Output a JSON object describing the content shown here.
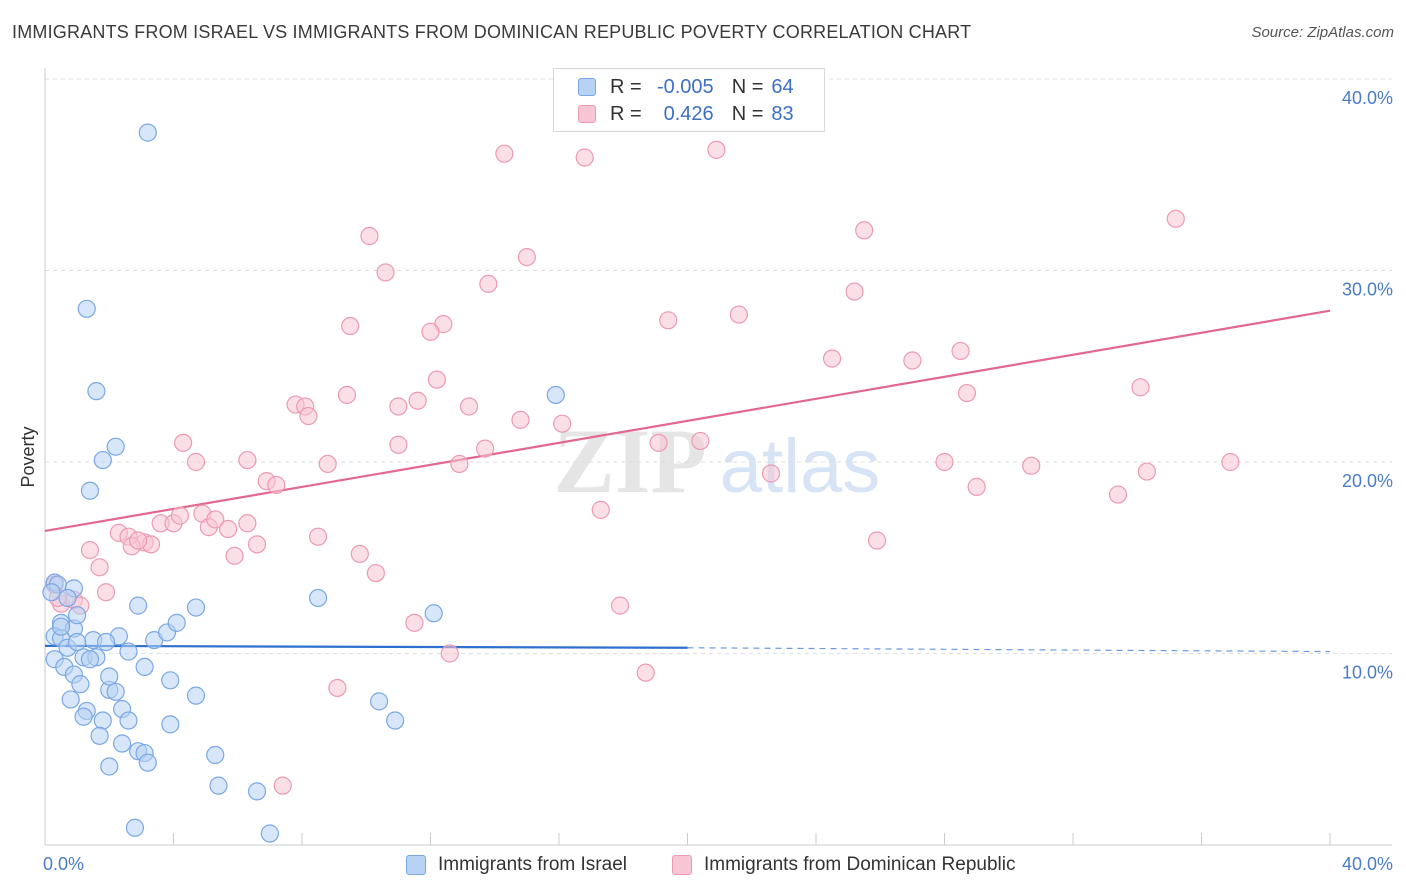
{
  "title": "IMMIGRANTS FROM ISRAEL VS IMMIGRANTS FROM DOMINICAN REPUBLIC POVERTY CORRELATION CHART",
  "source": "Source: ZipAtlas.com",
  "legend": {
    "r_label": "R =",
    "n_label": "N =",
    "rows": [
      {
        "r": "-0.005",
        "n": "64"
      },
      {
        "r": "0.426",
        "n": "83"
      }
    ]
  },
  "watermark": {
    "zip": "ZIP",
    "atlas": "atlas"
  },
  "colors": {
    "israel_fill": "#b7d2f3",
    "israel_stroke": "#7aa8e6",
    "israel_line": "#2f6fcf",
    "dr_fill": "#f7c5d3",
    "dr_stroke": "#ec9ab3",
    "dr_line": "#e2688f",
    "axis_text": "#4a7cc9",
    "grid": "#dddddd"
  },
  "chart_data": {
    "type": "scatter",
    "title": "IMMIGRANTS FROM ISRAEL VS IMMIGRANTS FROM DOMINICAN REPUBLIC POVERTY CORRELATION CHART",
    "xlabel": "",
    "ylabel": "Poverty",
    "xlim": [
      0,
      40
    ],
    "ylim": [
      0,
      40
    ],
    "x_tick_labels": [
      "0.0%",
      "40.0%"
    ],
    "y_ticks": [
      10,
      20,
      30,
      40
    ],
    "y_tick_labels": [
      "10.0%",
      "20.0%",
      "30.0%",
      "40.0%"
    ],
    "series": [
      {
        "name": "Immigrants from Israel",
        "r": -0.005,
        "n": 64,
        "trend": {
          "x": [
            0,
            20
          ],
          "y": [
            10.4,
            10.3
          ],
          "dashed_to": [
            40,
            10.1
          ]
        },
        "points": [
          [
            3.2,
            37.2
          ],
          [
            1.3,
            28.0
          ],
          [
            1.6,
            23.7
          ],
          [
            2.2,
            20.8
          ],
          [
            1.8,
            20.1
          ],
          [
            1.4,
            18.5
          ],
          [
            15.9,
            23.5
          ],
          [
            0.3,
            13.7
          ],
          [
            0.4,
            13.6
          ],
          [
            0.2,
            13.2
          ],
          [
            0.9,
            13.4
          ],
          [
            0.5,
            11.6
          ],
          [
            0.9,
            11.3
          ],
          [
            1.0,
            12.0
          ],
          [
            2.9,
            12.5
          ],
          [
            4.7,
            12.4
          ],
          [
            8.5,
            12.9
          ],
          [
            12.1,
            12.1
          ],
          [
            0.3,
            10.9
          ],
          [
            0.5,
            10.8
          ],
          [
            0.7,
            10.3
          ],
          [
            1.5,
            10.7
          ],
          [
            2.3,
            10.9
          ],
          [
            1.9,
            10.6
          ],
          [
            3.4,
            10.7
          ],
          [
            3.8,
            11.1
          ],
          [
            4.1,
            11.6
          ],
          [
            0.3,
            9.7
          ],
          [
            0.6,
            9.3
          ],
          [
            1.2,
            9.8
          ],
          [
            1.6,
            9.8
          ],
          [
            2.6,
            10.1
          ],
          [
            3.1,
            9.3
          ],
          [
            0.9,
            8.9
          ],
          [
            1.1,
            8.4
          ],
          [
            2.0,
            8.1
          ],
          [
            2.2,
            8.0
          ],
          [
            3.9,
            8.6
          ],
          [
            4.7,
            7.8
          ],
          [
            0.8,
            7.6
          ],
          [
            1.3,
            7.0
          ],
          [
            2.4,
            7.1
          ],
          [
            1.2,
            6.7
          ],
          [
            1.8,
            6.5
          ],
          [
            2.6,
            6.5
          ],
          [
            3.9,
            6.3
          ],
          [
            10.4,
            7.5
          ],
          [
            10.9,
            6.5
          ],
          [
            1.7,
            5.7
          ],
          [
            2.4,
            5.3
          ],
          [
            2.9,
            4.9
          ],
          [
            3.1,
            4.8
          ],
          [
            3.2,
            4.3
          ],
          [
            5.3,
            4.7
          ],
          [
            2.0,
            4.1
          ],
          [
            5.4,
            3.1
          ],
          [
            6.6,
            2.8
          ],
          [
            2.8,
            0.9
          ],
          [
            7.0,
            0.6
          ],
          [
            0.5,
            11.4
          ],
          [
            1.4,
            9.7
          ],
          [
            1.0,
            10.6
          ],
          [
            2.0,
            8.8
          ],
          [
            0.7,
            12.9
          ]
        ]
      },
      {
        "name": "Immigrants from Dominican Republic",
        "r": 0.426,
        "n": 83,
        "trend": {
          "x": [
            0,
            40
          ],
          "y": [
            16.4,
            27.9
          ]
        },
        "points": [
          [
            14.3,
            36.1
          ],
          [
            16.8,
            35.9
          ],
          [
            20.9,
            36.3
          ],
          [
            10.1,
            31.8
          ],
          [
            25.5,
            32.1
          ],
          [
            35.2,
            32.7
          ],
          [
            10.6,
            29.9
          ],
          [
            15.0,
            30.7
          ],
          [
            13.8,
            29.3
          ],
          [
            25.2,
            28.9
          ],
          [
            19.4,
            27.4
          ],
          [
            21.6,
            27.7
          ],
          [
            9.5,
            27.1
          ],
          [
            12.4,
            27.2
          ],
          [
            12.0,
            26.8
          ],
          [
            24.5,
            25.4
          ],
          [
            28.5,
            25.8
          ],
          [
            27.0,
            25.3
          ],
          [
            12.2,
            24.3
          ],
          [
            9.4,
            23.5
          ],
          [
            11.6,
            23.2
          ],
          [
            11.0,
            22.9
          ],
          [
            13.2,
            22.9
          ],
          [
            7.8,
            23.0
          ],
          [
            8.1,
            22.9
          ],
          [
            8.2,
            22.4
          ],
          [
            14.8,
            22.2
          ],
          [
            16.1,
            22.0
          ],
          [
            28.7,
            23.6
          ],
          [
            34.1,
            23.9
          ],
          [
            4.3,
            21.0
          ],
          [
            11.0,
            20.9
          ],
          [
            13.7,
            20.7
          ],
          [
            19.1,
            21.0
          ],
          [
            20.4,
            21.1
          ],
          [
            4.7,
            20.0
          ],
          [
            6.3,
            20.1
          ],
          [
            8.8,
            19.9
          ],
          [
            12.9,
            19.9
          ],
          [
            22.6,
            19.4
          ],
          [
            28.0,
            20.0
          ],
          [
            30.7,
            19.8
          ],
          [
            34.3,
            19.5
          ],
          [
            36.9,
            20.0
          ],
          [
            6.9,
            19.0
          ],
          [
            7.2,
            18.8
          ],
          [
            29.0,
            18.7
          ],
          [
            33.4,
            18.3
          ],
          [
            2.3,
            16.3
          ],
          [
            2.6,
            16.1
          ],
          [
            3.1,
            15.8
          ],
          [
            3.3,
            15.7
          ],
          [
            3.6,
            16.8
          ],
          [
            4.0,
            16.8
          ],
          [
            4.2,
            17.2
          ],
          [
            4.9,
            17.3
          ],
          [
            5.1,
            16.6
          ],
          [
            5.3,
            17.0
          ],
          [
            5.7,
            16.5
          ],
          [
            6.3,
            16.8
          ],
          [
            6.6,
            15.7
          ],
          [
            8.5,
            16.1
          ],
          [
            1.4,
            15.4
          ],
          [
            2.7,
            15.6
          ],
          [
            5.9,
            15.1
          ],
          [
            9.8,
            15.2
          ],
          [
            17.3,
            17.5
          ],
          [
            25.9,
            15.9
          ],
          [
            1.7,
            14.5
          ],
          [
            10.3,
            14.2
          ],
          [
            0.3,
            13.6
          ],
          [
            1.9,
            13.2
          ],
          [
            0.5,
            12.6
          ],
          [
            0.9,
            12.8
          ],
          [
            1.1,
            12.5
          ],
          [
            11.5,
            11.6
          ],
          [
            17.9,
            12.5
          ],
          [
            12.6,
            10.0
          ],
          [
            9.1,
            8.2
          ],
          [
            18.7,
            9.0
          ],
          [
            7.4,
            3.1
          ],
          [
            0.4,
            12.9
          ],
          [
            2.9,
            15.9
          ]
        ]
      }
    ],
    "legend": [
      "Immigrants from Israel",
      "Immigrants from Dominican Republic"
    ]
  }
}
